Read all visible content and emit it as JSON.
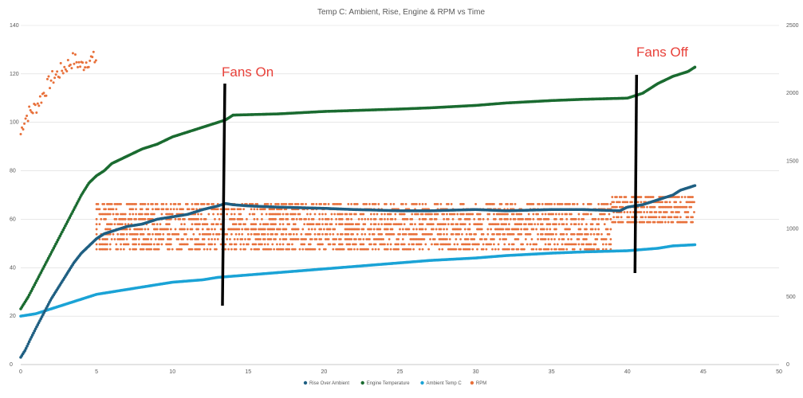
{
  "chart_data": {
    "type": "scatter",
    "title": "Temp C: Ambient, Rise, Engine & RPM vs Time",
    "xlabel": "",
    "ylabel": "",
    "y2label": "",
    "xlim": [
      0,
      50
    ],
    "ylim": [
      0,
      140
    ],
    "y2lim": [
      0,
      2500
    ],
    "x_ticks": [
      "0",
      "5",
      "10",
      "15",
      "20",
      "25",
      "30",
      "35",
      "40",
      "45",
      "50"
    ],
    "y_ticks": [
      "0",
      "20",
      "40",
      "60",
      "80",
      "100",
      "120",
      "140"
    ],
    "y2_ticks": [
      "0",
      "500",
      "1000",
      "1500",
      "2000",
      "2500"
    ],
    "grid": "horizontal",
    "legend_position": "bottom",
    "series": [
      {
        "name": "Rise Over Ambient",
        "axis": "left",
        "color": "#1f5f82",
        "x": [
          0,
          0.3,
          0.6,
          1,
          1.5,
          2,
          2.5,
          3,
          3.5,
          4,
          4.5,
          5,
          5.5,
          6,
          7,
          8,
          9,
          10,
          11,
          12,
          13,
          13.5,
          14,
          15,
          17,
          20,
          22,
          25,
          27,
          30,
          32,
          35,
          37,
          39.5,
          40,
          41,
          42,
          43,
          43.5,
          44,
          44.5
        ],
        "y": [
          3,
          6,
          10,
          15,
          21,
          27,
          32,
          37,
          42,
          46,
          49,
          52,
          54,
          55,
          57,
          58,
          60,
          61,
          62,
          64,
          65.5,
          66.5,
          66,
          65.5,
          65,
          64.5,
          64,
          63.5,
          63.5,
          64,
          63.5,
          64,
          64,
          63.5,
          65,
          66,
          68,
          70,
          72,
          73,
          74
        ]
      },
      {
        "name": "Engine Temperature",
        "axis": "left",
        "color": "#1a6b30",
        "x": [
          0,
          0.5,
          1,
          1.5,
          2,
          2.5,
          3,
          3.5,
          4,
          4.5,
          5,
          5.5,
          6,
          7,
          8,
          9,
          10,
          11,
          12,
          13,
          13.5,
          14,
          17,
          20,
          25,
          27,
          30,
          32,
          35,
          37,
          40,
          41,
          42,
          43,
          44,
          44.5
        ],
        "y": [
          23,
          28,
          34,
          40,
          46,
          52,
          58,
          64,
          70,
          75,
          78,
          80,
          83,
          86,
          89,
          91,
          94,
          96,
          98,
          100,
          101,
          103,
          103.5,
          104.5,
          105.5,
          106,
          107,
          108,
          109,
          109.5,
          110,
          112,
          116,
          119,
          121,
          123
        ]
      },
      {
        "name": "Ambient Temp C",
        "axis": "left",
        "color": "#1ba3d6",
        "x": [
          0,
          1,
          2,
          3,
          4,
          5,
          6,
          7,
          8,
          9,
          10,
          12,
          13,
          15,
          17,
          20,
          22,
          25,
          27,
          30,
          32,
          35,
          37,
          40,
          42,
          43,
          44.5
        ],
        "y": [
          20,
          21,
          23,
          25,
          27,
          29,
          30,
          31,
          32,
          33,
          34,
          35,
          36,
          37,
          38,
          39.5,
          40.5,
          42,
          43,
          44,
          45,
          46,
          46.5,
          47,
          48,
          49,
          49.5
        ]
      },
      {
        "name": "RPM",
        "axis": "right",
        "color": "#e8703a",
        "x": [
          0,
          0.2,
          0.5,
          1,
          1.5,
          2,
          2.5,
          3,
          3.5,
          4,
          4.5,
          5
        ],
        "y": [
          1700,
          1800,
          1850,
          1900,
          2000,
          2100,
          2150,
          2200,
          2250,
          2200,
          2250,
          2250
        ],
        "band_low": 850,
        "band_high": 1200,
        "band_range_start": 5,
        "band_range_end": 39,
        "after_band_low": 1050,
        "after_band_high": 1250,
        "after_band_range_start": 39,
        "after_band_range_end": 44.5
      }
    ],
    "annotations": [
      {
        "text": "Fans On",
        "x": 13.3
      },
      {
        "text": "Fans Off",
        "x": 40.5
      }
    ]
  }
}
